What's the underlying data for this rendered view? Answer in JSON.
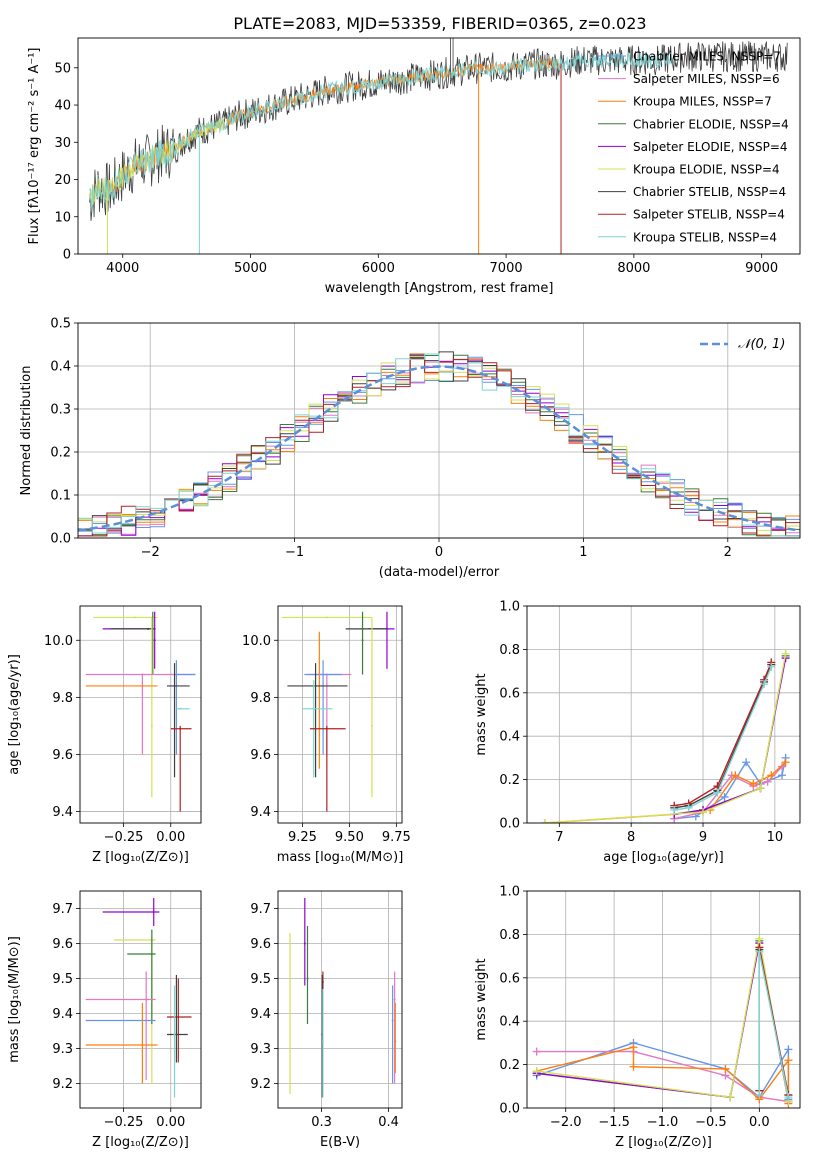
{
  "figure_title": "PLATE=2083, MJD=53359, FIBERID=0365, z=0.023",
  "colors": {
    "Chabrier MILES": "#6495ed",
    "Salpeter MILES": "#e377c2",
    "Kroupa MILES": "#ff7f0e",
    "Chabrier ELODIE": "#3a7d3a",
    "Salpeter ELODIE": "#9400d3",
    "Kroupa ELODIE": "#d4e157",
    "Chabrier STELIB": "#404040",
    "Salpeter STELIB": "#b22222",
    "Kroupa STELIB": "#7ed3d3",
    "gaussian": "#5b8fd8"
  },
  "chart_data": [
    {
      "id": "spectrum",
      "type": "line",
      "title": "",
      "xlabel": "wavelength [Angstrom, rest frame]",
      "ylabel": "Flux [fλ10⁻¹⁷ erg cm⁻² s⁻¹ A⁻¹]",
      "xlim": [
        3650,
        9300
      ],
      "ylim": [
        0,
        58
      ],
      "xticks": [
        "4000",
        "5000",
        "6000",
        "7000",
        "8000",
        "9000"
      ],
      "yticks": [
        "0",
        "10",
        "20",
        "30",
        "40",
        "50"
      ],
      "grid": false,
      "legend_position": "right",
      "legend": [
        "Chabrier MILES, N_SSP=7",
        "Salpeter MILES, N_SSP=6",
        "Kroupa MILES, N_SSP=7",
        "Chabrier ELODIE, N_SSP=4",
        "Salpeter ELODIE, N_SSP=4",
        "Kroupa ELODIE, N_SSP=4",
        "Chabrier STELIB, N_SSP=4",
        "Salpeter STELIB, N_SSP=4",
        "Kroupa STELIB, N_SSP=4"
      ],
      "data_curve": {
        "x": [
          3740,
          3800,
          3900,
          4000,
          4100,
          4200,
          4300,
          4400,
          4500,
          4600,
          4700,
          4800,
          4900,
          5000,
          5200,
          5400,
          5600,
          5800,
          6000,
          6200,
          6400,
          6600,
          6800,
          7000,
          7200,
          7400,
          7600,
          7800,
          8000,
          8200,
          8400,
          8600,
          8800,
          9000,
          9200
        ],
        "y": [
          14,
          18,
          17,
          21,
          24,
          25,
          27,
          28,
          31,
          33,
          34,
          35,
          37,
          38,
          40,
          42,
          44,
          45,
          46,
          47,
          48,
          49,
          50,
          50,
          51,
          51,
          52,
          52,
          52,
          52,
          53,
          53,
          53,
          53,
          53
        ]
      },
      "drop_lines": [
        {
          "x": 4600,
          "series": "Kroupa STELIB"
        },
        {
          "x": 6785,
          "series": "Kroupa MILES"
        },
        {
          "x": 7430,
          "series": "Salpeter STELIB"
        },
        {
          "x": 3880,
          "series": "Kroupa ELODIE"
        }
      ]
    },
    {
      "id": "residuals",
      "type": "line",
      "title": "",
      "xlabel": "(data-model)/error",
      "ylabel": "Normed distribution",
      "xlim": [
        -2.5,
        2.5
      ],
      "ylim": [
        0,
        0.5
      ],
      "xticks": [
        "−2",
        "−1",
        "0",
        "1",
        "2"
      ],
      "yticks": [
        "0.0",
        "0.1",
        "0.2",
        "0.3",
        "0.4",
        "0.5"
      ],
      "grid": true,
      "legend_position": "top-right",
      "legend": [
        "𝒩(0, 1)"
      ],
      "gaussian": {
        "mu": 0,
        "sigma": 1
      },
      "hist_bins": {
        "start": -2.5,
        "width": 0.1,
        "count": 50
      }
    },
    {
      "id": "age-vs-Z",
      "type": "scatter",
      "xlabel": "Z [log₁₀(Z/Z⊙)]",
      "ylabel": "age  [log₁₀(age/yr)]",
      "xlim": [
        -0.48,
        0.16
      ],
      "ylim": [
        9.36,
        10.12
      ],
      "xticks": [
        "−0.25",
        "0.00"
      ],
      "xtick_values": [
        -0.25,
        0.0
      ],
      "yticks": [
        "9.4",
        "9.6",
        "9.8",
        "10.0"
      ],
      "ytick_values": [
        9.4,
        9.6,
        9.8,
        10.0
      ],
      "grid": true,
      "points": [
        {
          "s": "Kroupa ELODIE",
          "x": -0.19,
          "xl": -0.41,
          "xh": -0.07,
          "y": 10.08,
          "yl": 10.08,
          "yh": 10.08
        },
        {
          "s": "Salpeter ELODIE",
          "x": -0.12,
          "xl": -0.36,
          "xh": -0.09,
          "y": 10.04,
          "yl": 10.04,
          "yh": 10.04
        },
        {
          "s": "Chabrier STELIB",
          "x": -0.12,
          "xl": -0.32,
          "xh": -0.08,
          "y": 10.04,
          "yl": 10.04,
          "yh": 10.04
        },
        {
          "s": "Chabrier ELODIE",
          "x": -0.095,
          "xl": -0.095,
          "xh": -0.095,
          "y": 10.0,
          "yl": 9.88,
          "yh": 10.1
        },
        {
          "s": "Salpeter ELODIE",
          "x": -0.085,
          "xl": -0.085,
          "xh": -0.085,
          "y": 10.0,
          "yl": 9.9,
          "yh": 10.1
        },
        {
          "s": "Kroupa ELODIE",
          "x": -0.1,
          "xl": -0.1,
          "xh": -0.1,
          "y": 9.7,
          "yl": 9.45,
          "yh": 10.08
        },
        {
          "s": "Salpeter MILES",
          "x": -0.15,
          "xl": -0.45,
          "xh": 0.13,
          "y": 9.88,
          "yl": 9.6,
          "yh": 9.88
        },
        {
          "s": "Kroupa MILES",
          "x": -0.15,
          "xl": -0.45,
          "xh": -0.07,
          "y": 9.84,
          "yl": 9.84,
          "yh": 9.84
        },
        {
          "s": "Chabrier MILES",
          "x": 0.03,
          "xl": 0.03,
          "xh": 0.13,
          "y": 9.88,
          "yl": 9.6,
          "yh": 9.93
        },
        {
          "s": "Chabrier STELIB",
          "x": 0.02,
          "xl": -0.02,
          "xh": 0.1,
          "y": 9.84,
          "yl": 9.52,
          "yh": 9.92
        },
        {
          "s": "Kroupa STELIB",
          "x": 0.05,
          "xl": 0.03,
          "xh": 0.1,
          "y": 9.76,
          "yl": 9.76,
          "yh": 9.76
        },
        {
          "s": "Salpeter STELIB",
          "x": 0.05,
          "xl": 0.0,
          "xh": 0.11,
          "y": 9.69,
          "yl": 9.4,
          "yh": 9.7
        }
      ]
    },
    {
      "id": "age-vs-mass",
      "type": "scatter",
      "xlabel": "mass [log₁₀(M/M⊙)]",
      "ylabel": "",
      "xlim": [
        9.12,
        9.78
      ],
      "ylim": [
        9.36,
        10.12
      ],
      "xticks": [
        "9.25",
        "9.50",
        "9.75"
      ],
      "xtick_values": [
        9.25,
        9.5,
        9.75
      ],
      "yticks": [
        "9.4",
        "9.6",
        "9.8",
        "10.0"
      ],
      "ytick_values": [
        9.4,
        9.6,
        9.8,
        10.0
      ],
      "grid": true,
      "points": [
        {
          "s": "Kroupa ELODIE",
          "x": 9.38,
          "xl": 9.14,
          "xh": 9.62,
          "y": 10.08,
          "yl": 10.08,
          "yh": 10.08
        },
        {
          "s": "Salpeter ELODIE",
          "x": 9.7,
          "xl": 9.6,
          "xh": 9.74,
          "y": 10.04,
          "yl": 9.9,
          "yh": 10.1
        },
        {
          "s": "Chabrier STELIB",
          "x": 9.57,
          "xl": 9.48,
          "xh": 9.7,
          "y": 10.04,
          "yl": 10.04,
          "yh": 10.04
        },
        {
          "s": "Chabrier ELODIE",
          "x": 9.57,
          "xl": 9.57,
          "xh": 9.57,
          "y": 10.0,
          "yl": 9.88,
          "yh": 10.1
        },
        {
          "s": "Kroupa ELODIE",
          "x": 9.62,
          "xl": 9.62,
          "xh": 9.62,
          "y": 9.7,
          "yl": 9.45,
          "yh": 10.08
        },
        {
          "s": "Salpeter MILES",
          "x": 9.38,
          "xl": 9.28,
          "xh": 9.51,
          "y": 9.88,
          "yl": 9.6,
          "yh": 9.88
        },
        {
          "s": "Chabrier MILES",
          "x": 9.36,
          "xl": 9.26,
          "xh": 9.46,
          "y": 9.88,
          "yl": 9.6,
          "yh": 9.93
        },
        {
          "s": "Kroupa MILES",
          "x": 9.34,
          "xl": 9.34,
          "xh": 9.34,
          "y": 9.84,
          "yl": 9.55,
          "yh": 10.03
        },
        {
          "s": "Chabrier STELIB",
          "x": 9.32,
          "xl": 9.17,
          "xh": 9.49,
          "y": 9.84,
          "yl": 9.52,
          "yh": 9.92
        },
        {
          "s": "Kroupa STELIB",
          "x": 9.31,
          "xl": 9.25,
          "xh": 9.41,
          "y": 9.76,
          "yl": 9.52,
          "yh": 9.86
        },
        {
          "s": "Salpeter STELIB",
          "x": 9.38,
          "xl": 9.29,
          "xh": 9.48,
          "y": 9.69,
          "yl": 9.4,
          "yh": 9.7
        }
      ]
    },
    {
      "id": "weight-vs-age",
      "type": "line",
      "xlabel": "age  [log₁₀(age/yr)]",
      "ylabel": "mass weight",
      "xlim": [
        6.55,
        10.35
      ],
      "ylim": [
        0,
        1.0
      ],
      "xticks": [
        "7",
        "8",
        "9",
        "10"
      ],
      "xtick_values": [
        7,
        8,
        9,
        10
      ],
      "yticks": [
        "0.0",
        "0.2",
        "0.4",
        "0.6",
        "0.8",
        "1.0"
      ],
      "ytick_values": [
        0,
        0.2,
        0.4,
        0.6,
        0.8,
        1.0
      ],
      "grid": true,
      "series": [
        {
          "name": "Chabrier MILES",
          "x": [
            8.6,
            8.9,
            9.3,
            9.6,
            9.8,
            10.1,
            10.15
          ],
          "y": [
            0.02,
            0.03,
            0.12,
            0.28,
            0.18,
            0.22,
            0.3
          ]
        },
        {
          "name": "Salpeter MILES",
          "x": [
            8.6,
            9.0,
            9.4,
            9.7,
            9.9,
            10.1
          ],
          "y": [
            0.02,
            0.05,
            0.22,
            0.17,
            0.19,
            0.26
          ]
        },
        {
          "name": "Kroupa MILES",
          "x": [
            6.8,
            8.6,
            9.1,
            9.45,
            9.7,
            9.95,
            10.15
          ],
          "y": [
            0.0,
            0.04,
            0.06,
            0.22,
            0.18,
            0.22,
            0.28
          ]
        },
        {
          "name": "Chabrier ELODIE",
          "x": [
            8.6,
            9.0,
            9.8,
            10.15
          ],
          "y": [
            0.04,
            0.06,
            0.16,
            0.77
          ]
        },
        {
          "name": "Salpeter ELODIE",
          "x": [
            8.6,
            9.0,
            9.8,
            10.15
          ],
          "y": [
            0.04,
            0.06,
            0.16,
            0.76
          ]
        },
        {
          "name": "Kroupa ELODIE",
          "x": [
            6.8,
            9.0,
            9.8,
            10.15
          ],
          "y": [
            0.0,
            0.05,
            0.16,
            0.78
          ]
        },
        {
          "name": "Chabrier STELIB",
          "x": [
            8.6,
            8.8,
            9.2,
            9.85,
            9.95
          ],
          "y": [
            0.07,
            0.08,
            0.15,
            0.65,
            0.73
          ]
        },
        {
          "name": "Salpeter STELIB",
          "x": [
            8.6,
            8.8,
            9.2,
            9.85,
            9.95
          ],
          "y": [
            0.08,
            0.09,
            0.17,
            0.66,
            0.74
          ]
        },
        {
          "name": "Kroupa STELIB",
          "x": [
            8.6,
            8.8,
            9.2,
            9.85,
            9.95
          ],
          "y": [
            0.06,
            0.07,
            0.14,
            0.64,
            0.72
          ]
        }
      ]
    },
    {
      "id": "mass-vs-Z",
      "type": "scatter",
      "xlabel": "Z [log₁₀(Z/Z⊙)]",
      "ylabel": "mass [log₁₀(M/M⊙)]",
      "xlim": [
        -0.48,
        0.16
      ],
      "ylim": [
        9.13,
        9.75
      ],
      "xticks": [
        "−0.25",
        "0.00"
      ],
      "xtick_values": [
        -0.25,
        0.0
      ],
      "yticks": [
        "9.2",
        "9.3",
        "9.4",
        "9.5",
        "9.6",
        "9.7"
      ],
      "ytick_values": [
        9.2,
        9.3,
        9.4,
        9.5,
        9.6,
        9.7
      ],
      "grid": true,
      "points": [
        {
          "s": "Salpeter ELODIE",
          "x": -0.09,
          "xl": -0.36,
          "xh": -0.06,
          "y": 9.69,
          "yl": 9.65,
          "yh": 9.73
        },
        {
          "s": "Kroupa ELODIE",
          "x": -0.1,
          "xl": -0.3,
          "xh": -0.08,
          "y": 9.61,
          "yl": 9.2,
          "yh": 9.62
        },
        {
          "s": "Chabrier ELODIE",
          "x": -0.1,
          "xl": -0.23,
          "xh": -0.08,
          "y": 9.57,
          "yl": 9.37,
          "yh": 9.64
        },
        {
          "s": "Salpeter MILES",
          "x": -0.13,
          "xl": -0.45,
          "xh": -0.08,
          "y": 9.44,
          "yl": 9.21,
          "yh": 9.52
        },
        {
          "s": "Chabrier MILES",
          "x": -0.15,
          "xl": -0.45,
          "xh": -0.08,
          "y": 9.38,
          "yl": 9.38,
          "yh": 9.38
        },
        {
          "s": "Kroupa MILES",
          "x": -0.15,
          "xl": -0.45,
          "xh": -0.07,
          "y": 9.31,
          "yl": 9.2,
          "yh": 9.43
        },
        {
          "s": "Salpeter STELIB",
          "x": 0.04,
          "xl": -0.02,
          "xh": 0.11,
          "y": 9.39,
          "yl": 9.26,
          "yh": 9.5
        },
        {
          "s": "Chabrier STELIB",
          "x": 0.03,
          "xl": -0.02,
          "xh": 0.09,
          "y": 9.34,
          "yl": 9.26,
          "yh": 9.51
        },
        {
          "s": "Kroupa STELIB",
          "x": 0.02,
          "xl": 0.02,
          "xh": 0.02,
          "y": 9.34,
          "yl": 9.16,
          "yh": 9.48
        }
      ]
    },
    {
      "id": "mass-vs-ebv",
      "type": "scatter",
      "xlabel": "E(B-V)",
      "ylabel": "",
      "xlim": [
        0.235,
        0.42
      ],
      "ylim": [
        9.13,
        9.75
      ],
      "xticks": [
        "0.3",
        "0.4"
      ],
      "xtick_values": [
        0.3,
        0.4
      ],
      "yticks": [
        "9.2",
        "9.3",
        "9.4",
        "9.5",
        "9.6",
        "9.7"
      ],
      "ytick_values": [
        9.2,
        9.3,
        9.4,
        9.5,
        9.6,
        9.7
      ],
      "grid": true,
      "points": [
        {
          "s": "Kroupa ELODIE",
          "x": 0.253,
          "xl": 0.253,
          "xh": 0.253,
          "y": 9.4,
          "yl": 9.17,
          "yh": 9.63
        },
        {
          "s": "Salpeter ELODIE",
          "x": 0.275,
          "xl": 0.275,
          "xh": 0.275,
          "y": 9.6,
          "yl": 9.48,
          "yh": 9.73
        },
        {
          "s": "Chabrier ELODIE",
          "x": 0.279,
          "xl": 0.279,
          "xh": 0.279,
          "y": 9.5,
          "yl": 9.37,
          "yh": 9.65
        },
        {
          "s": "Salpeter STELIB",
          "x": 0.302,
          "xl": 0.302,
          "xh": 0.302,
          "y": 9.49,
          "yl": 9.47,
          "yh": 9.52
        },
        {
          "s": "Chabrier STELIB",
          "x": 0.301,
          "xl": 0.301,
          "xh": 0.301,
          "y": 9.34,
          "yl": 9.16,
          "yh": 9.51
        },
        {
          "s": "Kroupa STELIB",
          "x": 0.302,
          "xl": 0.302,
          "xh": 0.302,
          "y": 9.32,
          "yl": 9.16,
          "yh": 9.47
        },
        {
          "s": "Chabrier MILES",
          "x": 0.406,
          "xl": 0.406,
          "xh": 0.406,
          "y": 9.38,
          "yl": 9.2,
          "yh": 9.48
        },
        {
          "s": "Salpeter MILES",
          "x": 0.409,
          "xl": 0.409,
          "xh": 0.409,
          "y": 9.44,
          "yl": 9.2,
          "yh": 9.52
        },
        {
          "s": "Kroupa MILES",
          "x": 0.41,
          "xl": 0.41,
          "xh": 0.41,
          "y": 9.32,
          "yl": 9.23,
          "yh": 9.43
        }
      ]
    },
    {
      "id": "weight-vs-Z",
      "type": "line",
      "xlabel": "Z [log₁₀(Z/Z⊙)]",
      "ylabel": "mass weight",
      "xlim": [
        -2.4,
        0.42
      ],
      "ylim": [
        0,
        1.0
      ],
      "xticks": [
        "−2.0",
        "−1.5",
        "−1.0",
        "−0.5",
        "0.0"
      ],
      "xtick_values": [
        -2.0,
        -1.5,
        -1.0,
        -0.5,
        0.0
      ],
      "yticks": [
        "0.0",
        "0.2",
        "0.4",
        "0.6",
        "0.8",
        "1.0"
      ],
      "ytick_values": [
        0,
        0.2,
        0.4,
        0.6,
        0.8,
        1.0
      ],
      "grid": true,
      "series": [
        {
          "name": "Chabrier MILES",
          "x": [
            -2.3,
            -1.3,
            -0.35,
            0.0,
            0.3,
            0.3
          ],
          "y": [
            0.15,
            0.3,
            0.18,
            0.05,
            0.27,
            0.04
          ]
        },
        {
          "name": "Salpeter MILES",
          "x": [
            -2.3,
            -1.3,
            -0.35,
            0.0,
            0.3
          ],
          "y": [
            0.26,
            0.26,
            0.15,
            0.05,
            0.03
          ]
        },
        {
          "name": "Kroupa MILES",
          "x": [
            -2.3,
            -1.3,
            -1.3,
            -0.35,
            0.0,
            0.3,
            0.3
          ],
          "y": [
            0.17,
            0.28,
            0.19,
            0.18,
            0.04,
            0.22,
            0.02
          ]
        },
        {
          "name": "Chabrier ELODIE",
          "x": [
            -2.3,
            -0.3,
            0.0,
            0.3
          ],
          "y": [
            0.16,
            0.05,
            0.77,
            0.03
          ]
        },
        {
          "name": "Salpeter ELODIE",
          "x": [
            -2.3,
            -0.3,
            0.0,
            0.3
          ],
          "y": [
            0.16,
            0.05,
            0.76,
            0.03
          ]
        },
        {
          "name": "Kroupa ELODIE",
          "x": [
            -2.3,
            -0.3,
            0.0,
            0.3
          ],
          "y": [
            0.17,
            0.05,
            0.78,
            0.03
          ]
        },
        {
          "name": "Chabrier STELIB",
          "x": [
            0.0,
            0.0,
            0.3
          ],
          "y": [
            0.08,
            0.73,
            0.06
          ]
        },
        {
          "name": "Salpeter STELIB",
          "x": [
            0.0,
            0.0,
            0.3
          ],
          "y": [
            0.08,
            0.74,
            0.06
          ]
        },
        {
          "name": "Kroupa STELIB",
          "x": [
            0.0,
            0.0,
            0.3
          ],
          "y": [
            0.06,
            0.72,
            0.05
          ]
        }
      ]
    }
  ]
}
